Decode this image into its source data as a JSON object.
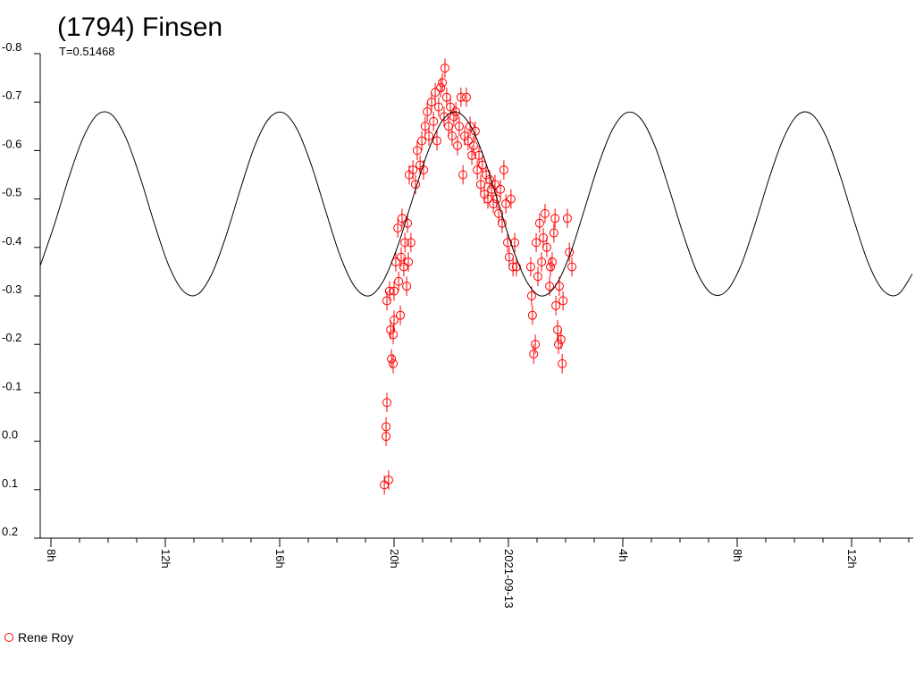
{
  "chart_data": {
    "type": "scatter",
    "title": "(1794) Finsen",
    "subtitle": "T=0.51468",
    "xlim": [
      7.625,
      38.156
    ],
    "xticks": [
      {
        "value": 8,
        "label": "8h"
      },
      {
        "value": 12,
        "label": "12h"
      },
      {
        "value": 16,
        "label": "16h"
      },
      {
        "value": 20,
        "label": "20h"
      },
      {
        "value": 24,
        "label": "2021-09-13"
      },
      {
        "value": 28,
        "label": "4h"
      },
      {
        "value": 32,
        "label": "8h"
      },
      {
        "value": 36,
        "label": "12h"
      }
    ],
    "xminorticks": [
      9,
      10,
      11,
      13,
      14,
      15,
      17,
      18,
      19,
      21,
      22,
      23,
      25,
      26,
      27,
      29,
      30,
      31,
      33,
      34,
      35,
      37,
      38
    ],
    "ylim": [
      0.2,
      -0.8
    ],
    "yticks": [
      -0.8,
      -0.7,
      -0.6,
      -0.5,
      -0.4,
      -0.3,
      -0.2,
      -0.1,
      {
        "value": 0,
        "label": "0.0"
      },
      0.1,
      0.2
    ],
    "legend": "bottom-left",
    "series": [
      {
        "name": "Rene Roy",
        "type": "scatter",
        "color": "#ff0000",
        "yerr": 0.02,
        "x": [
          19.66,
          19.81,
          19.72,
          19.72,
          19.75,
          19.75,
          19.84,
          19.88,
          19.91,
          19.97,
          19.97,
          20.0,
          20.0,
          20.06,
          20.13,
          20.16,
          20.22,
          20.25,
          20.28,
          20.34,
          20.38,
          20.44,
          20.47,
          20.5,
          20.53,
          20.59,
          20.66,
          20.75,
          20.81,
          20.91,
          20.97,
          21.03,
          21.09,
          21.16,
          21.22,
          21.31,
          21.38,
          21.44,
          21.5,
          21.56,
          21.63,
          21.69,
          21.75,
          21.78,
          21.84,
          21.91,
          21.97,
          22.03,
          22.09,
          22.16,
          22.22,
          22.28,
          22.34,
          22.41,
          22.47,
          22.53,
          22.59,
          22.66,
          22.72,
          22.78,
          22.84,
          22.91,
          22.97,
          23.03,
          23.09,
          23.16,
          23.22,
          23.28,
          23.34,
          23.41,
          23.47,
          23.53,
          23.59,
          23.66,
          23.72,
          23.78,
          23.84,
          23.91,
          23.97,
          24.03,
          24.09,
          24.16,
          24.22,
          24.28,
          24.78,
          24.81,
          24.84,
          24.88,
          24.94,
          24.97,
          25.03,
          25.09,
          25.16,
          25.22,
          25.28,
          25.34,
          25.44,
          25.47,
          25.53,
          25.59,
          25.63,
          25.66,
          25.72,
          25.75,
          25.78,
          25.84,
          25.88,
          25.91,
          26.06,
          26.13,
          26.22
        ],
        "values": [
          0.09,
          0.08,
          -0.01,
          -0.03,
          -0.08,
          -0.29,
          -0.31,
          -0.23,
          -0.17,
          -0.16,
          -0.22,
          -0.25,
          -0.31,
          -0.37,
          -0.44,
          -0.33,
          -0.26,
          -0.38,
          -0.46,
          -0.36,
          -0.41,
          -0.32,
          -0.45,
          -0.37,
          -0.55,
          -0.41,
          -0.56,
          -0.53,
          -0.6,
          -0.57,
          -0.62,
          -0.56,
          -0.65,
          -0.68,
          -0.63,
          -0.7,
          -0.66,
          -0.72,
          -0.62,
          -0.69,
          -0.73,
          -0.74,
          -0.67,
          -0.77,
          -0.71,
          -0.65,
          -0.69,
          -0.63,
          -0.67,
          -0.68,
          -0.61,
          -0.65,
          -0.71,
          -0.55,
          -0.63,
          -0.71,
          -0.62,
          -0.65,
          -0.59,
          -0.61,
          -0.64,
          -0.56,
          -0.59,
          -0.53,
          -0.57,
          -0.51,
          -0.55,
          -0.5,
          -0.54,
          -0.52,
          -0.49,
          -0.53,
          -0.5,
          -0.47,
          -0.52,
          -0.45,
          -0.56,
          -0.49,
          -0.41,
          -0.38,
          -0.5,
          -0.36,
          -0.41,
          -0.36,
          -0.36,
          -0.3,
          -0.26,
          -0.18,
          -0.2,
          -0.41,
          -0.34,
          -0.45,
          -0.37,
          -0.42,
          -0.47,
          -0.4,
          -0.32,
          -0.36,
          -0.37,
          -0.43,
          -0.46,
          -0.28,
          -0.23,
          -0.2,
          -0.32,
          -0.21,
          -0.16,
          -0.29,
          -0.46,
          -0.39,
          -0.36
        ]
      },
      {
        "type": "line",
        "color": "#000000",
        "x": [
          7.625,
          8.125,
          8.625,
          9.125,
          9.625,
          10.125,
          10.625,
          11.125,
          11.625,
          12.125,
          12.625,
          13.125,
          13.625,
          14.125,
          14.625,
          15.125,
          15.625,
          16.125,
          16.625,
          17.125,
          17.625,
          18.125,
          18.625,
          19.125,
          19.625,
          20.125,
          20.625,
          21.125,
          21.625,
          22.125,
          22.625,
          23.125,
          23.625,
          24.125,
          24.625,
          25.125,
          25.625,
          26.125,
          26.625,
          27.125,
          27.625,
          28.125,
          28.625,
          29.125,
          29.625,
          30.125,
          30.625,
          31.125,
          31.625,
          32.125,
          32.625,
          33.125,
          33.625,
          34.125,
          34.625,
          35.125,
          35.625,
          36.125,
          36.625,
          37.125,
          37.625,
          38.125
        ],
        "values": [
          -0.362,
          -0.448,
          -0.544,
          -0.626,
          -0.674,
          -0.674,
          -0.626,
          -0.544,
          -0.448,
          -0.362,
          -0.31,
          -0.303,
          -0.345,
          -0.424,
          -0.52,
          -0.609,
          -0.666,
          -0.678,
          -0.642,
          -0.567,
          -0.472,
          -0.381,
          -0.319,
          -0.3,
          -0.331,
          -0.402,
          -0.496,
          -0.588,
          -0.656,
          -0.68,
          -0.656,
          -0.589,
          -0.496,
          -0.402,
          -0.331,
          -0.3,
          -0.319,
          -0.381,
          -0.472,
          -0.567,
          -0.642,
          -0.678,
          -0.666,
          -0.609,
          -0.52,
          -0.425,
          -0.345,
          -0.304,
          -0.31,
          -0.362,
          -0.448,
          -0.544,
          -0.626,
          -0.674,
          -0.674,
          -0.627,
          -0.544,
          -0.448,
          -0.362,
          -0.31,
          -0.303,
          -0.345
        ]
      }
    ]
  }
}
